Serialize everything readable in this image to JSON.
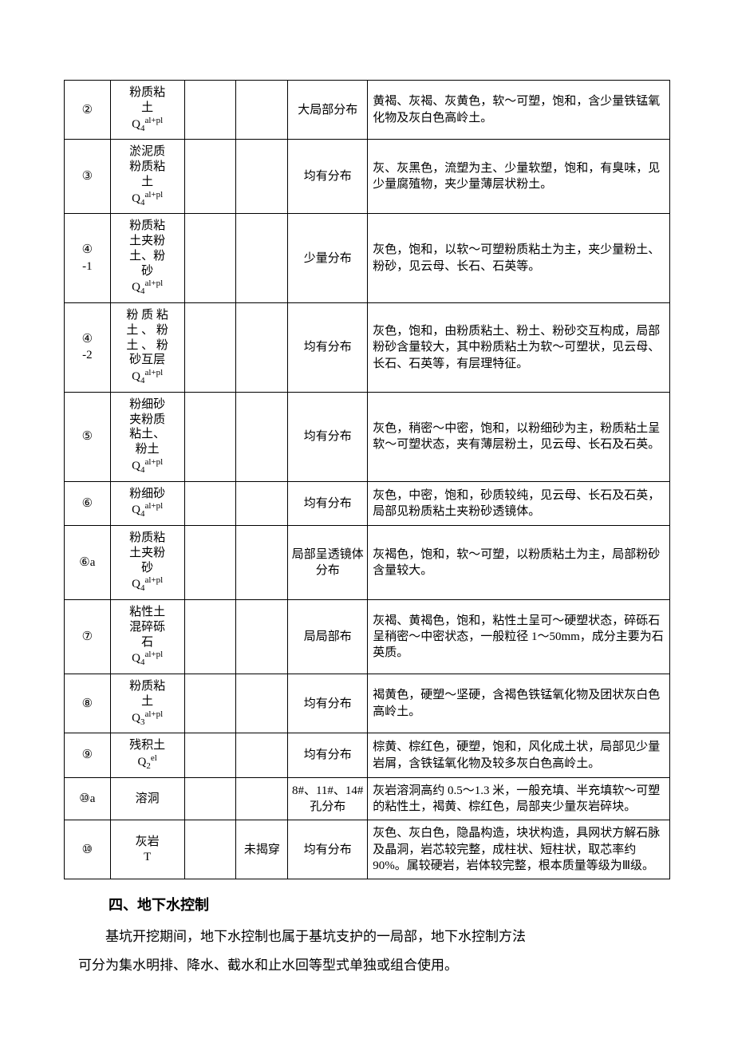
{
  "table": {
    "rows": [
      {
        "id": "②",
        "name_lines": [
          "粉质粘",
          "土"
        ],
        "formation": {
          "q": "Q",
          "sub": "4",
          "sup": "al+pl"
        },
        "c3": "",
        "c4": "",
        "dist": "大局部分布",
        "desc": "黄褐、灰褐、灰黄色，软～可塑，饱和，含少量铁锰氧化物及灰白色高岭土。"
      },
      {
        "id": "③",
        "name_lines": [
          "淤泥质",
          "粉质粘",
          "土"
        ],
        "formation": {
          "q": "Q",
          "sub": "4",
          "sup": "al+pl"
        },
        "c3": "",
        "c4": "",
        "dist": "均有分布",
        "desc": "灰、灰黑色，流塑为主、少量软塑，饱和，有臭味，见少量腐殖物，夹少量薄层状粉土。"
      },
      {
        "id": "④\n-1",
        "name_lines": [
          "粉质粘",
          "土夹粉",
          "土、粉",
          "砂"
        ],
        "formation": {
          "q": "Q",
          "sub": "4",
          "sup": "al+pl"
        },
        "c3": "",
        "c4": "",
        "dist": "少量分布",
        "desc": "灰色，饱和，以软～可塑粉质粘土为主，夹少量粉土、粉砂，见云母、长石、石英等。"
      },
      {
        "id": "④\n-2",
        "name_lines": [
          "粉 质 粘",
          "土 、 粉",
          "土 、 粉",
          "砂互层"
        ],
        "formation": {
          "q": "Q",
          "sub": "4",
          "sup": "al+pl"
        },
        "c3": "",
        "c4": "",
        "dist": "均有分布",
        "desc": "灰色，饱和，由粉质粘土、粉土、粉砂交互构成，局部粉砂含量较大，其中粉质粘土为软～可塑状，见云母、长石、石英等，有层理特征。"
      },
      {
        "id": "⑤",
        "name_lines": [
          "粉细砂",
          "夹粉质",
          "粘土、",
          "粉土"
        ],
        "formation": {
          "q": "Q",
          "sub": "4",
          "sup": "al+pl"
        },
        "c3": "",
        "c4": "",
        "dist": "均有分布",
        "desc": "灰色，稍密～中密，饱和，以粉细砂为主，粉质粘土呈软～可塑状态，夹有薄层粉土，见云母、长石及石英。"
      },
      {
        "id": "⑥",
        "name_lines": [
          "粉细砂"
        ],
        "formation": {
          "q": "Q",
          "sub": "4",
          "sup": "al+pl"
        },
        "c3": "",
        "c4": "",
        "dist": "均有分布",
        "desc": "灰色，中密，饱和，砂质较纯，见云母、长石及石英，局部见粉质粘土夹粉砂透镜体。"
      },
      {
        "id": "⑥a",
        "name_lines": [
          "粉质粘",
          "土夹粉",
          "砂"
        ],
        "formation": {
          "q": "Q",
          "sub": "4",
          "sup": "al+pl"
        },
        "c3": "",
        "c4": "",
        "dist": "局部呈透镜体分布",
        "desc": "灰褐色，饱和，软～可塑，以粉质粘土为主，局部粉砂含量较大。"
      },
      {
        "id": "⑦",
        "name_lines": [
          "粘性土",
          "混碎砾",
          "石"
        ],
        "formation": {
          "q": "Q",
          "sub": "4",
          "sup": "al+pl"
        },
        "c3": "",
        "c4": "",
        "dist": "局局部布",
        "desc": "灰褐、黄褐色，饱和，粘性土呈可～硬塑状态，碎砾石呈稍密～中密状态，一般粒径 1～50mm，成分主要为石英质。"
      },
      {
        "id": "⑧",
        "name_lines": [
          "粉质粘",
          "土"
        ],
        "formation": {
          "q": "Q",
          "sub": "3",
          "sup": "al+pl"
        },
        "c3": "",
        "c4": "",
        "dist": "均有分布",
        "desc": "褐黄色，硬塑～坚硬，含褐色铁锰氧化物及团状灰白色高岭土。"
      },
      {
        "id": "⑨",
        "name_lines": [
          "残积土"
        ],
        "formation": {
          "q": "Q",
          "sub": "2",
          "sup": "el"
        },
        "c3": "",
        "c4": "",
        "dist": "均有分布",
        "desc": "棕黄、棕红色，硬塑，饱和，风化成土状，局部见少量岩屑，含铁锰氧化物及较多灰白色高岭土。"
      },
      {
        "id": "⑩a",
        "name_lines": [
          "溶洞"
        ],
        "formation": null,
        "c3": "",
        "c4": "",
        "dist": "8#、11#、14#孔分布",
        "desc": "灰岩溶洞高约 0.5～1.3 米，一般充填、半充填软～可塑的粘性土，褐黄、棕红色，局部夹少量灰岩碎块。"
      },
      {
        "id": "⑩",
        "name_lines": [
          "灰岩",
          "T"
        ],
        "formation": null,
        "c3": "",
        "c4": "未揭穿",
        "dist": "均有分布",
        "desc": "灰色、灰白色，隐晶构造，块状构造，具网状方解石脉及晶洞，岩芯较完整，成柱状、短柱状，取芯率约 90%。属较硬岩，岩体较完整，根本质量等级为Ⅲ级。"
      }
    ]
  },
  "section_title": "四、地下水控制",
  "paragraphs": [
    "基坑开挖期间，地下水控制也属于基坑支护的一局部，地下水控制方法",
    "可分为集水明排、降水、截水和止水回等型式单独或组合使用。"
  ]
}
